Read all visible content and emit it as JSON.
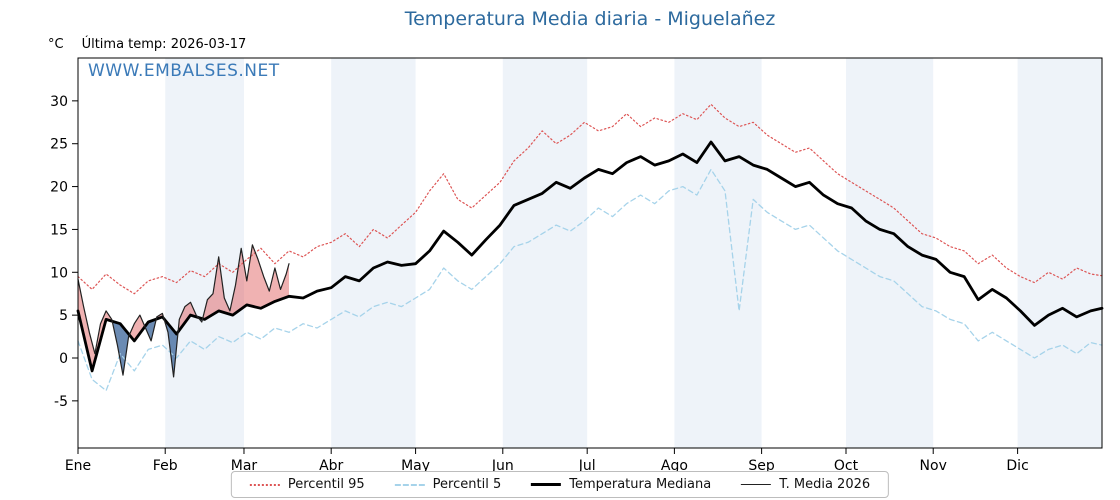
{
  "chart_data": {
    "type": "line",
    "title": "Temperatura Media diaria - Miguelañez",
    "unit_label": "°C",
    "last_temp_label": "Última temp: 2026-03-17",
    "watermark": "WWW.EMBALSES.NET",
    "ylim": [
      -10.5,
      35
    ],
    "y_ticks": [
      -5,
      0,
      5,
      10,
      15,
      20,
      25,
      30
    ],
    "x_months": [
      "Ene",
      "Feb",
      "Mar",
      "Abr",
      "May",
      "Jun",
      "Jul",
      "Ago",
      "Sep",
      "Oct",
      "Nov",
      "Dic"
    ],
    "month_start_days": [
      1,
      32,
      60,
      91,
      121,
      152,
      182,
      213,
      244,
      274,
      305,
      335
    ],
    "days_total": 365,
    "band_color": "#eef3f9",
    "fills": {
      "above": "rgba(221,85,85,0.45)",
      "below": "rgba(70,110,160,0.8)"
    },
    "sample_days": {
      "every5": [
        1,
        6,
        11,
        16,
        21,
        26,
        31,
        36,
        41,
        46,
        51,
        56,
        61,
        66,
        71,
        76,
        81,
        86,
        91,
        96,
        101,
        106,
        111,
        116,
        121,
        126,
        131,
        136,
        141,
        146,
        151,
        156,
        161,
        166,
        171,
        176,
        181,
        186,
        191,
        196,
        201,
        206,
        211,
        216,
        221,
        226,
        231,
        236,
        241,
        246,
        251,
        256,
        261,
        266,
        271,
        276,
        281,
        286,
        291,
        296,
        301,
        306,
        311,
        316,
        321,
        326,
        331,
        336,
        341,
        346,
        351,
        356,
        361,
        365
      ],
      "y2026": [
        1,
        3,
        5,
        7,
        9,
        11,
        13,
        15,
        17,
        19,
        21,
        23,
        25,
        27,
        29,
        31,
        33,
        35,
        37,
        39,
        41,
        43,
        45,
        47,
        49,
        51,
        53,
        55,
        57,
        59,
        61,
        63,
        65,
        67,
        69,
        71,
        73,
        75,
        76
      ]
    },
    "series": [
      {
        "name": "Percentil 95",
        "color": "#dd5555",
        "style": "dotted",
        "days": "every5",
        "values": [
          9.5,
          8.0,
          9.8,
          8.5,
          7.5,
          9.0,
          9.5,
          8.8,
          10.2,
          9.5,
          11.0,
          10.0,
          11.5,
          12.8,
          11.0,
          12.5,
          11.8,
          13.0,
          13.5,
          14.5,
          13.0,
          15.0,
          14.0,
          15.5,
          17.0,
          19.5,
          21.5,
          18.5,
          17.5,
          19.0,
          20.5,
          23.0,
          24.5,
          26.5,
          25.0,
          26.0,
          27.5,
          26.5,
          27.0,
          28.5,
          27.0,
          28.0,
          27.5,
          28.5,
          27.8,
          29.6,
          28.0,
          27.0,
          27.5,
          26.0,
          25.0,
          24.0,
          24.5,
          23.0,
          21.5,
          20.5,
          19.5,
          18.5,
          17.5,
          16.0,
          14.5,
          14.0,
          13.0,
          12.5,
          11.0,
          12.0,
          10.5,
          9.5,
          8.8,
          10.0,
          9.2,
          10.5,
          9.8,
          9.6
        ]
      },
      {
        "name": "Percentil 5",
        "color": "#a6d3ea",
        "style": "dashed",
        "days": "every5",
        "values": [
          2.0,
          -2.5,
          -3.8,
          0.5,
          -1.5,
          1.0,
          1.5,
          0.0,
          2.0,
          1.0,
          2.5,
          1.8,
          3.0,
          2.2,
          3.5,
          3.0,
          4.0,
          3.5,
          4.5,
          5.5,
          4.8,
          6.0,
          6.5,
          6.0,
          7.0,
          8.0,
          10.5,
          9.0,
          8.0,
          9.5,
          11.0,
          13.0,
          13.5,
          14.5,
          15.5,
          14.8,
          16.0,
          17.5,
          16.5,
          18.0,
          19.0,
          18.0,
          19.5,
          20.0,
          19.0,
          22.0,
          19.5,
          5.5,
          18.5,
          17.0,
          16.0,
          15.0,
          15.5,
          14.0,
          12.5,
          11.5,
          10.5,
          9.5,
          9.0,
          7.5,
          6.0,
          5.5,
          4.5,
          4.0,
          2.0,
          3.0,
          2.0,
          1.0,
          0.0,
          1.0,
          1.5,
          0.5,
          1.8,
          1.5
        ]
      },
      {
        "name": "Temperatura Mediana",
        "color": "#000000",
        "style": "solid-thick",
        "days": "every5",
        "values": [
          5.5,
          -1.5,
          4.5,
          4.0,
          2.0,
          4.2,
          4.8,
          2.8,
          5.0,
          4.5,
          5.5,
          5.0,
          6.2,
          5.8,
          6.6,
          7.2,
          7.0,
          7.8,
          8.2,
          9.5,
          9.0,
          10.5,
          11.2,
          10.8,
          11.0,
          12.5,
          14.8,
          13.5,
          12.0,
          13.8,
          15.5,
          17.8,
          18.5,
          19.2,
          20.5,
          19.8,
          21.0,
          22.0,
          21.5,
          22.8,
          23.5,
          22.5,
          23.0,
          23.8,
          22.8,
          25.2,
          23.0,
          23.5,
          22.5,
          22.0,
          21.0,
          20.0,
          20.5,
          19.0,
          18.0,
          17.5,
          16.0,
          15.0,
          14.5,
          13.0,
          12.0,
          11.5,
          10.0,
          9.5,
          6.8,
          8.0,
          7.0,
          5.5,
          3.8,
          5.0,
          5.8,
          4.8,
          5.5,
          5.8
        ]
      },
      {
        "name": "T. Media 2026",
        "color": "#222222",
        "style": "solid-thin",
        "days": "y2026",
        "values": [
          9.2,
          6.0,
          3.0,
          0.5,
          4.0,
          5.5,
          4.5,
          1.5,
          -2.0,
          2.5,
          4.0,
          5.0,
          3.5,
          2.0,
          4.8,
          5.2,
          3.0,
          -2.2,
          4.5,
          6.0,
          6.5,
          5.0,
          4.2,
          6.8,
          7.5,
          11.8,
          7.0,
          5.5,
          8.5,
          12.8,
          9.0,
          13.2,
          11.5,
          9.5,
          7.8,
          10.5,
          8.0,
          9.8,
          11.0
        ]
      }
    ]
  }
}
